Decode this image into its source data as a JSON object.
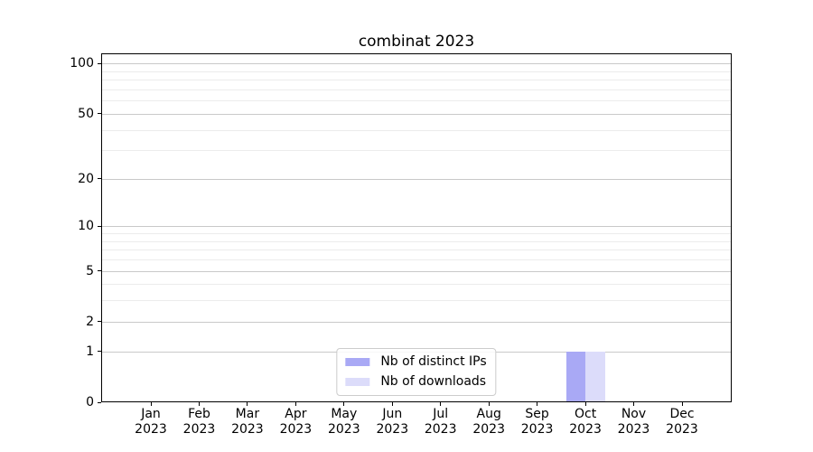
{
  "title": "combinat 2023",
  "chart_data": {
    "type": "bar",
    "title": "combinat 2023",
    "categories": [
      "Jan",
      "Feb",
      "Mar",
      "Apr",
      "May",
      "Jun",
      "Jul",
      "Aug",
      "Sep",
      "Oct",
      "Nov",
      "Dec"
    ],
    "category_year": "2023",
    "series": [
      {
        "name": "Nb of distinct IPs",
        "color": "#a9a9f5",
        "values": [
          0,
          0,
          0,
          0,
          0,
          0,
          0,
          0,
          0,
          1,
          0,
          0
        ]
      },
      {
        "name": "Nb of downloads",
        "color": "#dcdcfa",
        "values": [
          0,
          0,
          0,
          0,
          0,
          0,
          0,
          0,
          0,
          1,
          0,
          0
        ]
      }
    ],
    "xlabel": "",
    "ylabel": "",
    "yscale": "log1p",
    "ylim": [
      0,
      115
    ],
    "y_major_ticks": [
      0,
      1,
      2,
      5,
      10,
      20,
      50,
      100
    ],
    "y_minor_gridlines": [
      3,
      4,
      6,
      7,
      8,
      9,
      30,
      40,
      60,
      70,
      80,
      90
    ],
    "grid": true,
    "legend_position": "lower center",
    "colors": {
      "major_grid": "#c9c9c9",
      "minor_grid": "#ececec",
      "axis": "#000000",
      "background": "#ffffff"
    }
  }
}
